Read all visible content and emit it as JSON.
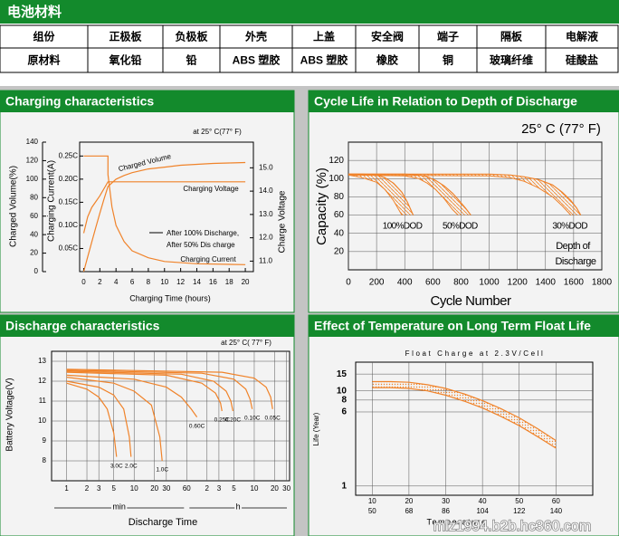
{
  "header": {
    "title": "电池材料"
  },
  "table": {
    "rows": [
      [
        "组份",
        "正极板",
        "负极板",
        "外壳",
        "上盖",
        "安全阀",
        "端子",
        "隔板",
        "电解液"
      ],
      [
        "原材料",
        "氧化铅",
        "铅",
        "ABS 塑胶",
        "ABS 塑胶",
        "橡胶",
        "铜",
        "玻璃纤维",
        "硅酸盐"
      ]
    ]
  },
  "charts": [
    {
      "type": "line",
      "title": "Charging characteristics",
      "annotation": "at 25° C(77° F)",
      "xlabel": "Charging Time (hours)",
      "xlim": [
        -0.5,
        21
      ],
      "xticks": [
        0,
        2,
        4,
        6,
        8,
        10,
        12,
        14,
        16,
        18,
        20
      ],
      "ylabel": "Charged Volume(%)",
      "ylim": [
        0,
        140
      ],
      "yticks": [
        0,
        20,
        40,
        60,
        80,
        100,
        120,
        140
      ],
      "y2label": "Charging Current(A)",
      "y2lim": [
        0,
        0.28
      ],
      "y2ticks": [
        {
          "value": 0.05,
          "label": "0.05C"
        },
        {
          "value": 0.1,
          "label": "0.10C"
        },
        {
          "value": 0.15,
          "label": "0.15C"
        },
        {
          "value": 0.2,
          "label": "0.20C"
        },
        {
          "value": 0.25,
          "label": "0.25C"
        }
      ],
      "y3label": "Charge Voltage",
      "y3lim": [
        10.55,
        16.1
      ],
      "y3ticks": [
        {
          "value": 11,
          "label": "11.0"
        },
        {
          "value": 12,
          "label": "12.0"
        },
        {
          "value": 13,
          "label": "13.0"
        },
        {
          "value": 14,
          "label": "14.0"
        },
        {
          "value": 15,
          "label": "15.0"
        }
      ],
      "series": [
        {
          "name": "Charged Volume",
          "color": "#f0832a",
          "axis": "y",
          "x": [
            0,
            0.5,
            1,
            1.5,
            2,
            2.5,
            3,
            4,
            5,
            6,
            8,
            10,
            12,
            14,
            16,
            18,
            20
          ],
          "values": [
            0,
            16,
            32,
            48,
            63,
            78,
            92,
            100,
            104,
            107,
            111,
            113,
            115,
            116,
            117,
            117.5,
            118
          ]
        },
        {
          "name": "Charging Voltage",
          "color": "#f0832a",
          "axis": "y3",
          "x": [
            0,
            0.5,
            1,
            2,
            3,
            20
          ],
          "values": [
            12.2,
            12.9,
            13.3,
            13.8,
            14.4,
            14.4
          ]
        },
        {
          "name": "Charging Current",
          "color": "#f0832a",
          "axis": "y2",
          "x": [
            0,
            3,
            3,
            3.5,
            4,
            5,
            6,
            8,
            10,
            14,
            20
          ],
          "values": [
            0.25,
            0.25,
            0.21,
            0.14,
            0.1,
            0.065,
            0.045,
            0.03,
            0.022,
            0.017,
            0.015
          ]
        }
      ],
      "notes": [
        "After 100% Discharge,",
        "After 50% Dis charge"
      ]
    },
    {
      "type": "band",
      "title": "Cycle Life in Relation to Depth of Discharge",
      "annotation": "25° C (77° F)",
      "xlabel": "Cycle Number",
      "xlim": [
        0,
        1800
      ],
      "xticks": [
        0,
        200,
        400,
        600,
        800,
        1000,
        1200,
        1400,
        1600,
        1800
      ],
      "ylabel": "Capacity (%)",
      "ylim": [
        0,
        140
      ],
      "yticks": [
        20,
        40,
        60,
        80,
        100,
        120
      ],
      "grid": true,
      "series": [
        {
          "name": "100%DOD",
          "color": "#f0832a",
          "x": [
            0,
            100,
            200,
            260,
            320,
            380,
            420,
            460
          ],
          "upper": [
            105,
            105,
            104,
            101,
            95,
            85,
            74,
            60
          ],
          "lower": [
            104,
            101,
            96,
            88,
            76,
            60,
            null,
            null
          ]
        },
        {
          "name": "50%DOD",
          "color": "#f0832a",
          "x": [
            0,
            400,
            500,
            560,
            620,
            680,
            740,
            780,
            830,
            870
          ],
          "upper": [
            105,
            105,
            104,
            102,
            98,
            92,
            84,
            77,
            68,
            60
          ],
          "lower": [
            104,
            103,
            100,
            95,
            88,
            78,
            66,
            60,
            null,
            null
          ]
        },
        {
          "name": "30%DOD",
          "color": "#f0832a",
          "x": [
            0,
            1000,
            1150,
            1250,
            1350,
            1450,
            1520,
            1580,
            1620,
            1650
          ],
          "upper": [
            105,
            105,
            104,
            102,
            99,
            93,
            85,
            76,
            68,
            60
          ],
          "lower": [
            104,
            103,
            101,
            97,
            90,
            80,
            70,
            60,
            null,
            null
          ]
        }
      ],
      "notes": [
        "Depth of",
        "Discharge"
      ]
    },
    {
      "type": "line",
      "title": "Discharge characteristics",
      "annotation": "at 25° C( 77° F)",
      "xlabel": "Discharge Time",
      "xscale": "log",
      "xlim": [
        0.6,
        2000
      ],
      "xticks": [
        1,
        2,
        3,
        5,
        10,
        20,
        30,
        60,
        {
          "value": 120,
          "label": "2"
        },
        {
          "value": 180,
          "label": "3"
        },
        {
          "value": 300,
          "label": "5"
        },
        {
          "value": 600,
          "label": "10"
        },
        {
          "value": 1200,
          "label": "20"
        },
        {
          "value": 1800,
          "label": "30"
        }
      ],
      "xunits": [
        "min",
        "h"
      ],
      "ylabel": "Battery Voltage(V)",
      "ylim": [
        7,
        13.5
      ],
      "yticks": [
        8,
        9,
        10,
        11,
        12,
        13
      ],
      "grid": true,
      "series": [
        {
          "name": "3.0C",
          "color": "#f0832a",
          "x": [
            1,
            2,
            3,
            4,
            5,
            5.5
          ],
          "values": [
            11.9,
            11.6,
            11.2,
            10.6,
            9.4,
            8.2
          ]
        },
        {
          "name": "2.0C",
          "color": "#f0832a",
          "x": [
            1,
            3,
            5,
            7,
            8.5,
            9
          ],
          "values": [
            12,
            11.7,
            11.3,
            10.6,
            9.2,
            8.2
          ]
        },
        {
          "name": "1.0C",
          "color": "#f0832a",
          "x": [
            1,
            5,
            10,
            18,
            24,
            26
          ],
          "values": [
            12.2,
            11.9,
            11.5,
            10.8,
            9.2,
            8
          ]
        },
        {
          "name": "0.60C",
          "color": "#f0832a",
          "x": [
            1,
            10,
            30,
            50,
            70,
            85
          ],
          "values": [
            12.3,
            12.1,
            11.7,
            11.2,
            10.6,
            10.2
          ]
        },
        {
          "name": "0.25C",
          "color": "#f0832a",
          "x": [
            1,
            30,
            100,
            160,
            190,
            200
          ],
          "values": [
            12.45,
            12.3,
            11.9,
            11.4,
            10.9,
            10.5
          ]
        },
        {
          "name": "0.20C",
          "color": "#f0832a",
          "x": [
            1,
            50,
            150,
            230,
            270,
            290
          ],
          "values": [
            12.5,
            12.35,
            12,
            11.5,
            11,
            10.5
          ]
        },
        {
          "name": "0.10C",
          "color": "#f0832a",
          "x": [
            1,
            100,
            300,
            450,
            520,
            560
          ],
          "values": [
            12.55,
            12.4,
            12.1,
            11.6,
            11.1,
            10.6
          ]
        },
        {
          "name": "0.05C",
          "color": "#f0832a",
          "x": [
            1,
            200,
            600,
            900,
            1050,
            1120
          ],
          "values": [
            12.6,
            12.45,
            12.15,
            11.7,
            11.2,
            10.6
          ]
        }
      ]
    },
    {
      "type": "band",
      "title": "Effect of Temperature on Long Term Float Life",
      "subtitle": "Float Charge at 2.3V/Cell",
      "xlabel": "Temperature",
      "xlim": [
        5.5,
        70
      ],
      "xticks": [
        10,
        20,
        30,
        40,
        50,
        60
      ],
      "x2lim": [
        41.9,
        158
      ],
      "x2ticks": [
        50,
        68,
        86,
        104,
        122,
        140
      ],
      "ylabel": "Life (Year)",
      "yscale": "log",
      "ylim": [
        0.8,
        20
      ],
      "yticks": [
        1,
        6,
        8,
        10,
        15
      ],
      "grid": true,
      "series": [
        {
          "name": null,
          "color": "#f0832a",
          "x": [
            10,
            15,
            20,
            25,
            30,
            35,
            40,
            45,
            50,
            55,
            60
          ],
          "upper": [
            12.5,
            12.5,
            12.3,
            11.6,
            10.6,
            9.3,
            7.9,
            6.5,
            5.2,
            4,
            3
          ],
          "lower": [
            10.8,
            10.8,
            10.6,
            10,
            9,
            7.8,
            6.6,
            5.4,
            4.3,
            3.3,
            2.5
          ]
        }
      ]
    }
  ],
  "watermark": "mlz1994.b2b.hc360.com"
}
